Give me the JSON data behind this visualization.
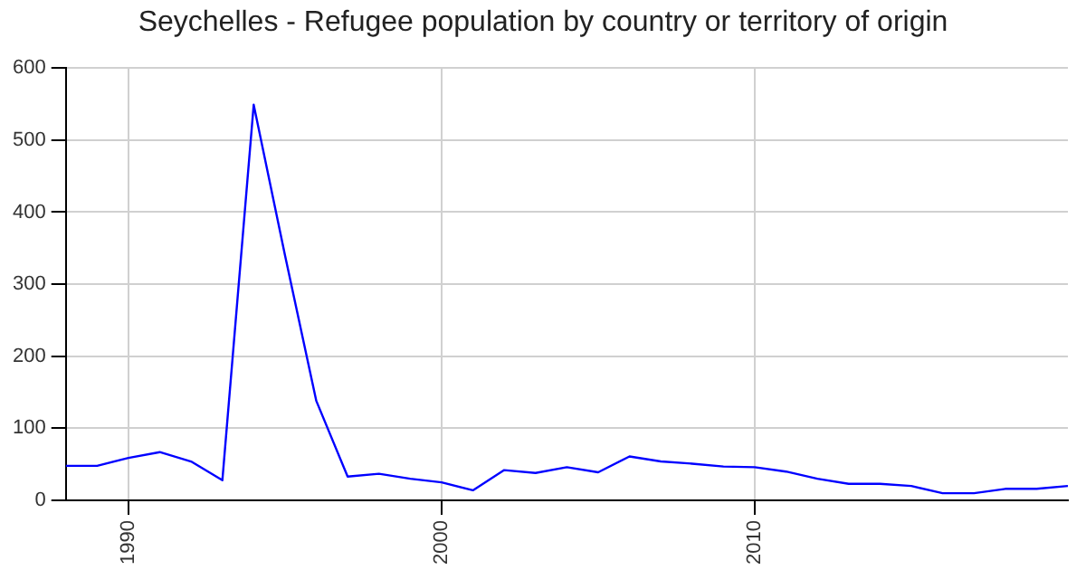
{
  "chart_data": {
    "type": "line",
    "title": "Seychelles - Refugee population by country or territory of origin",
    "x": [
      1988,
      1989,
      1990,
      1991,
      1992,
      1993,
      1994,
      1995,
      1996,
      1997,
      1998,
      1999,
      2000,
      2001,
      2002,
      2003,
      2004,
      2005,
      2006,
      2007,
      2008,
      2009,
      2010,
      2011,
      2012,
      2013,
      2014,
      2015,
      2016,
      2017,
      2018,
      2019,
      2020
    ],
    "series": [
      {
        "color": "#0000ff",
        "values": [
          48,
          48,
          59,
          67,
          54,
          28,
          549,
          340,
          138,
          33,
          37,
          30,
          25,
          14,
          42,
          38,
          46,
          39,
          61,
          54,
          51,
          47,
          46,
          40,
          30,
          23,
          23,
          20,
          10,
          10,
          16,
          16,
          20
        ]
      }
    ],
    "xlim": [
      1988,
      2020
    ],
    "xticks": [
      1990,
      2000,
      2010
    ],
    "ylim": [
      0,
      600
    ],
    "yticks": [
      0,
      100,
      200,
      300,
      400,
      500,
      600
    ],
    "grid": true,
    "legend": false,
    "marker": "none",
    "line_style": "solid"
  }
}
